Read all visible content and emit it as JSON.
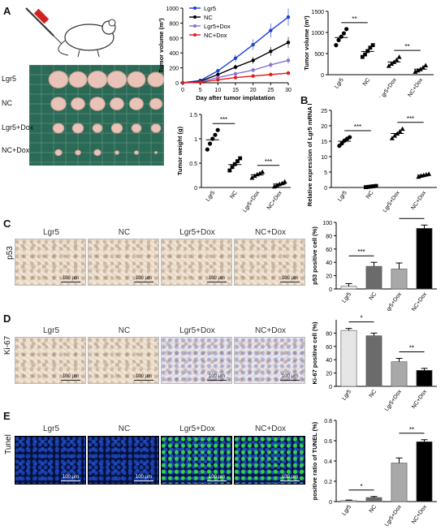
{
  "panels": {
    "A": "A",
    "B": "B",
    "C": "C",
    "D": "D",
    "E": "E"
  },
  "photo": {
    "rows": [
      "Lgr5",
      "NC",
      "Lgr5+Dox",
      "NC+Dox"
    ]
  },
  "groups": [
    "Lgr5",
    "NC",
    "Lgr5+Dox",
    "NC+Dox"
  ],
  "rowlabels": {
    "C": "p53",
    "D": "Ki-67",
    "E": "Tunel"
  },
  "scalebar": "100 μm",
  "chart_data": [
    {
      "id": "tumor_volume_line",
      "type": "line",
      "xlabel": "Day after tumor implatation",
      "ylabel": "Tumor volume (m³)",
      "x": [
        0,
        5,
        10,
        15,
        20,
        25,
        30
      ],
      "xlim": [
        0,
        30
      ],
      "ylim": [
        0,
        1000
      ],
      "yticks": [
        0,
        200,
        400,
        600,
        800,
        1000
      ],
      "series": [
        {
          "name": "Lgr5",
          "color": "#1f3fd6",
          "values": [
            0,
            30,
            160,
            330,
            510,
            700,
            880
          ]
        },
        {
          "name": "NC",
          "color": "#000000",
          "values": [
            0,
            20,
            110,
            210,
            300,
            420,
            540
          ]
        },
        {
          "name": "Lgr5+Dox",
          "color": "#8b6fd6",
          "values": [
            0,
            10,
            70,
            120,
            170,
            240,
            300
          ]
        },
        {
          "name": "NC+Dox",
          "color": "#e21b1b",
          "values": [
            0,
            5,
            40,
            70,
            90,
            110,
            130
          ]
        }
      ]
    },
    {
      "id": "tumor_volume_scatter",
      "type": "scatter",
      "ylabel": "Tumor volume (m³)",
      "ylim": [
        0,
        1500
      ],
      "yticks": [
        0,
        500,
        1000,
        1500
      ],
      "categories": [
        "Lgr5",
        "NC",
        "Lgr5+Dox",
        "NC+Dox"
      ],
      "means": [
        880,
        550,
        300,
        130
      ],
      "points": [
        [
          700,
          820,
          900,
          980,
          1080
        ],
        [
          420,
          480,
          560,
          640,
          700
        ],
        [
          210,
          260,
          300,
          350,
          420
        ],
        [
          70,
          100,
          130,
          170,
          220
        ]
      ],
      "sig": [
        {
          "pair": [
            0,
            1
          ],
          "text": "**"
        },
        {
          "pair": [
            2,
            3
          ],
          "text": "**"
        }
      ]
    },
    {
      "id": "tumor_weight",
      "type": "scatter",
      "ylabel": "Tumor weight (g)",
      "ylim": [
        0,
        1.5
      ],
      "yticks": [
        0.0,
        0.5,
        1.0,
        1.5
      ],
      "categories": [
        "Lgr5",
        "NC",
        "Lgr5+Dox",
        "NC+Dox"
      ],
      "means": [
        0.98,
        0.47,
        0.26,
        0.07
      ],
      "points": [
        [
          0.78,
          0.9,
          1.0,
          1.08,
          1.18
        ],
        [
          0.35,
          0.42,
          0.48,
          0.54,
          0.6
        ],
        [
          0.2,
          0.24,
          0.27,
          0.29,
          0.32
        ],
        [
          0.02,
          0.05,
          0.07,
          0.09,
          0.12
        ]
      ],
      "sig": [
        {
          "pair": [
            0,
            1
          ],
          "text": "***"
        },
        {
          "pair": [
            2,
            3
          ],
          "text": "***"
        }
      ]
    },
    {
      "id": "lgr5_mrna",
      "type": "scatter",
      "ylabel": "Relative expression of Lgr5 mRNA level",
      "ylim": [
        0,
        25
      ],
      "yticks": [
        0,
        5,
        10,
        15,
        20,
        25
      ],
      "categories": [
        "Lgr5",
        "NC",
        "Lgr5+Dox",
        "NC+Dox"
      ],
      "means": [
        15,
        0.3,
        17.5,
        4
      ],
      "points": [
        [
          13.5,
          14.3,
          15.2,
          15.8,
          16.3
        ],
        [
          0.1,
          0.2,
          0.3,
          0.4,
          0.5
        ],
        [
          16,
          16.8,
          17.5,
          18.2,
          19
        ],
        [
          3.5,
          3.8,
          4,
          4.2,
          4.4
        ]
      ],
      "sig": [
        {
          "pair": [
            0,
            1
          ],
          "text": "***"
        },
        {
          "pair": [
            2,
            3
          ],
          "text": "***"
        }
      ]
    },
    {
      "id": "p53_bar",
      "type": "bar",
      "ylabel": "p53 positive cell (%)",
      "ylim": [
        0,
        100
      ],
      "yticks": [
        0,
        20,
        40,
        60,
        80,
        100
      ],
      "categories": [
        "Lgr5",
        "NC",
        "Lgr5+Dox",
        "NC+Dox"
      ],
      "values": [
        4,
        34,
        30,
        91
      ],
      "errors": [
        4,
        6,
        9,
        5
      ],
      "colors": [
        "#e6e6e6",
        "#6b6b6b",
        "#a9a9a9",
        "#000000"
      ],
      "sig": [
        {
          "pair": [
            0,
            1
          ],
          "text": "***"
        },
        {
          "pair": [
            2,
            3
          ],
          "text": "***"
        }
      ]
    },
    {
      "id": "ki67_bar",
      "type": "bar",
      "ylabel": "Ki-67 positive cell (%)",
      "ylim": [
        0,
        100
      ],
      "yticks": [
        0,
        20,
        40,
        60,
        80
      ],
      "categories": [
        "Lgr5",
        "NC",
        "Lgr5+Dox",
        "NC+Dox"
      ],
      "values": [
        84,
        76,
        37,
        24
      ],
      "errors": [
        3,
        4,
        5,
        3
      ],
      "colors": [
        "#e6e6e6",
        "#6b6b6b",
        "#a9a9a9",
        "#000000"
      ],
      "sig": [
        {
          "pair": [
            0,
            1
          ],
          "text": "*"
        },
        {
          "pair": [
            2,
            3
          ],
          "text": "**"
        }
      ]
    },
    {
      "id": "tunel_bar",
      "type": "bar",
      "ylabel": "positive ratio of TUNEL (%)",
      "ylim": [
        0,
        0.8
      ],
      "yticks": [
        0.0,
        0.2,
        0.4,
        0.6,
        0.8
      ],
      "categories": [
        "Lgr5",
        "NC",
        "Lgr5+Dox",
        "NC+Dox"
      ],
      "values": [
        0.01,
        0.04,
        0.38,
        0.59
      ],
      "errors": [
        0.005,
        0.01,
        0.05,
        0.02
      ],
      "colors": [
        "#e6e6e6",
        "#6b6b6b",
        "#a9a9a9",
        "#000000"
      ],
      "sig": [
        {
          "pair": [
            0,
            1
          ],
          "text": "*"
        },
        {
          "pair": [
            2,
            3
          ],
          "text": "**"
        }
      ]
    }
  ]
}
